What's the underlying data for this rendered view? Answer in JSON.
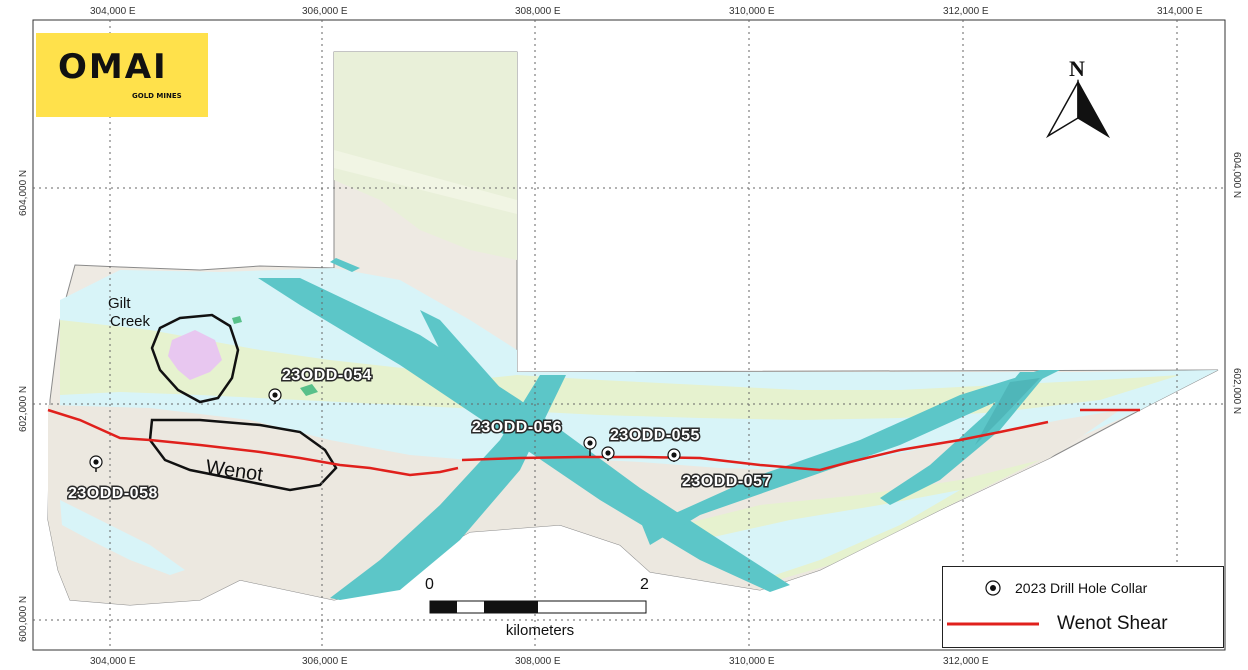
{
  "logo": {
    "brand": "OMAI",
    "sub": "GOLD MINES"
  },
  "north_arrow": {
    "label": "N"
  },
  "eastings": [
    "304,000 E",
    "306,000 E",
    "308,000 E",
    "310,000 E",
    "312,000 E",
    "314,000 E"
  ],
  "northings": [
    "604,000 N",
    "602,000 N",
    "600,000 N"
  ],
  "area_labels": {
    "gilt": "Gilt",
    "creek": "Creek",
    "wenot": "Wenot"
  },
  "drill_holes": [
    "23ODD-054",
    "23ODD-056",
    "23ODD-055",
    "23ODD-057",
    "23ODD-058"
  ],
  "scale_bar": {
    "zero": "0",
    "two": "2",
    "unit": "kilometers"
  },
  "legend": {
    "collar": "2023 Drill Hole Collar",
    "shear": "Wenot Shear"
  },
  "colors": {
    "logo_yellow": "#ffe14b",
    "shear_red": "#e0201c",
    "diorite_teal": "#5cc6c8",
    "mafic_green": "#e6f2cf",
    "sediment_beige": "#eeeae3",
    "water_blue": "#d8f4f8"
  }
}
